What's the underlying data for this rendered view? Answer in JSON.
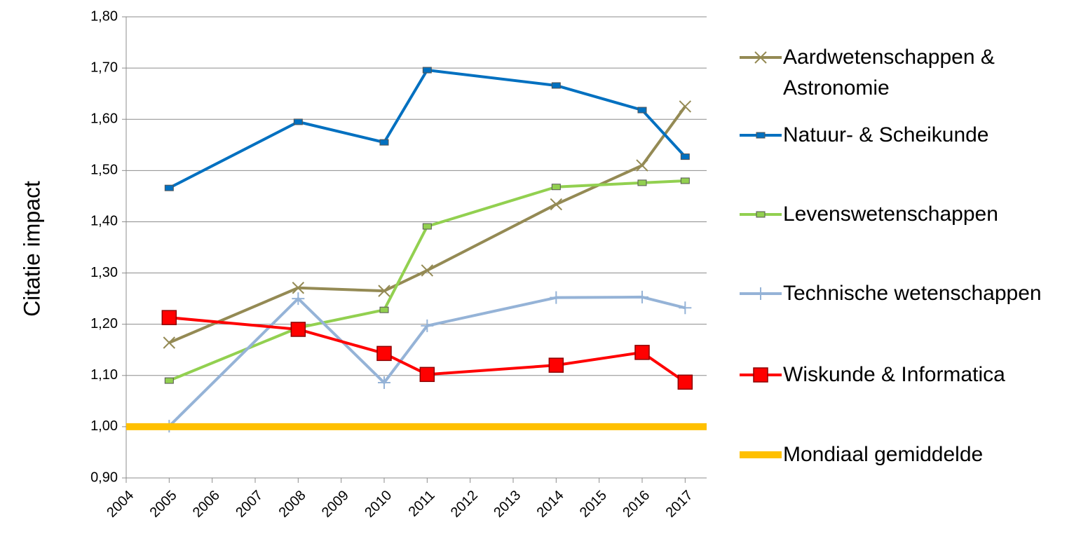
{
  "chart_data": {
    "type": "line",
    "y_label": "Citatie impact",
    "x": [
      2005,
      2008,
      2010,
      2011,
      2014,
      2016,
      2017
    ],
    "xlim": [
      2004,
      2017.5
    ],
    "xticks": [
      2004,
      2005,
      2006,
      2007,
      2008,
      2009,
      2010,
      2011,
      2012,
      2013,
      2014,
      2015,
      2016,
      2017
    ],
    "ylim": [
      0.9,
      1.8
    ],
    "yticks": [
      {
        "value": 0.9,
        "label": "0,90"
      },
      {
        "value": 1.0,
        "label": "1,00"
      },
      {
        "value": 1.1,
        "label": "1,10"
      },
      {
        "value": 1.2,
        "label": "1,20"
      },
      {
        "value": 1.3,
        "label": "1,30"
      },
      {
        "value": 1.4,
        "label": "1,40"
      },
      {
        "value": 1.5,
        "label": "1,50"
      },
      {
        "value": 1.6,
        "label": "1,60"
      },
      {
        "value": 1.7,
        "label": "1,70"
      },
      {
        "value": 1.8,
        "label": "1,80"
      }
    ],
    "grid": true,
    "legend": "right",
    "series": [
      {
        "name": "Aardwetenschappen & Astronomie",
        "color": "#948a54",
        "marker": "x",
        "values": [
          1.164,
          1.271,
          1.265,
          1.305,
          1.434,
          1.51,
          1.625
        ]
      },
      {
        "name": "Natuur- & Scheikunde",
        "color": "#0070c0",
        "marker": "square",
        "values": [
          1.466,
          1.595,
          1.555,
          1.696,
          1.666,
          1.618,
          1.527
        ]
      },
      {
        "name": "Levenswetenschappen",
        "color": "#92d050",
        "marker": "square",
        "values": [
          1.09,
          1.193,
          1.228,
          1.391,
          1.468,
          1.476,
          1.48
        ]
      },
      {
        "name": "Technische wetenschappen",
        "color": "#95b3d7",
        "marker": "plus",
        "values": [
          1.001,
          1.25,
          1.086,
          1.197,
          1.252,
          1.253,
          1.232
        ]
      },
      {
        "name": "Wiskunde & Informatica",
        "color": "#ff0000",
        "marker": "bigsquare",
        "values": [
          1.213,
          1.19,
          1.143,
          1.102,
          1.12,
          1.145,
          1.087
        ]
      },
      {
        "name": "Mondiaal gemiddelde",
        "color": "#ffc000",
        "marker": "none",
        "width": 10,
        "x": [
          2004,
          2017.5
        ],
        "values": [
          1.0,
          1.0
        ]
      }
    ]
  }
}
